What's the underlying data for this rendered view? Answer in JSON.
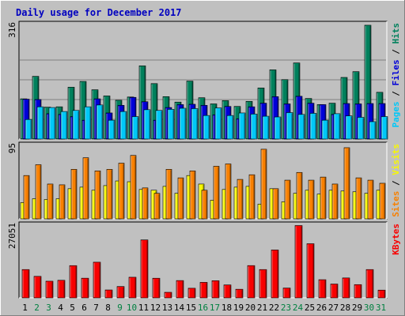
{
  "chart_data": {
    "type": "bar",
    "title": "Daily usage for December 2017",
    "categories": [
      "1",
      "2",
      "3",
      "4",
      "5",
      "6",
      "7",
      "8",
      "9",
      "10",
      "11",
      "12",
      "13",
      "14",
      "15",
      "16",
      "17",
      "18",
      "19",
      "20",
      "21",
      "22",
      "23",
      "24",
      "25",
      "26",
      "27",
      "28",
      "29",
      "30",
      "31"
    ],
    "weekend_days": [
      "2",
      "3",
      "9",
      "10",
      "16",
      "17",
      "23",
      "24",
      "30",
      "31"
    ],
    "colors": {
      "hits": "#00805c",
      "files": "#0000d8",
      "pages": "#00c8f8",
      "visits": "#f8f800",
      "sites": "#f88000",
      "kbytes": "#f80000",
      "title": "#0000c0",
      "weekday_label": "#000000",
      "weekend_label": "#008040"
    },
    "panels": [
      {
        "id": "top",
        "max_label": "316",
        "ylim": [
          0,
          316
        ],
        "legend_parts": [
          {
            "text": "Pages",
            "color": "#00c8f8"
          },
          {
            "text": " / ",
            "color": "#000000"
          },
          {
            "text": "Files",
            "color": "#0000d8"
          },
          {
            "text": " / ",
            "color": "#000000"
          },
          {
            "text": "Hits",
            "color": "#00805c"
          }
        ],
        "series": [
          {
            "name": "Hits",
            "values": [
              111,
              173,
              88,
              89,
              143,
              159,
              136,
              119,
              107,
              116,
              202,
              153,
              117,
              102,
              160,
              114,
              97,
              106,
              90,
              104,
              141,
              191,
              164,
              210,
              112,
              95,
              99,
              170,
              186,
              314,
              129
            ]
          },
          {
            "name": "Files",
            "values": [
              110,
              109,
              70,
              68,
              62,
              52,
              111,
              72,
              93,
              115,
              103,
              52,
              87,
              95,
              96,
              93,
              67,
              90,
              56,
              89,
              99,
              117,
              97,
              118,
              99,
              95,
              68,
              98,
              97,
              98,
              98
            ]
          },
          {
            "name": "Pages",
            "values": [
              54,
              89,
              87,
              76,
              79,
              89,
              94,
              52,
              76,
              62,
              81,
              79,
              82,
              85,
              84,
              65,
              86,
              65,
              72,
              69,
              63,
              61,
              73,
              68,
              71,
              52,
              70,
              64,
              60,
              48,
              62
            ]
          }
        ]
      },
      {
        "id": "middle",
        "max_label": "95",
        "ylim": [
          0,
          95
        ],
        "legend_parts": [
          {
            "text": "Sites",
            "color": "#f88000"
          },
          {
            "text": " / ",
            "color": "#000000"
          },
          {
            "text": "Visits",
            "color": "#f8f800"
          }
        ],
        "series": [
          {
            "name": "Sites",
            "values": [
              56,
              70,
              45,
              44,
              64,
              79,
              62,
              64,
              72,
              82,
              40,
              33,
              64,
              53,
              62,
              37,
              68,
              71,
              51,
              57,
              90,
              39,
              50,
              60,
              50,
              54,
              45,
              92,
              53,
              50,
              46
            ]
          },
          {
            "name": "Visits",
            "values": [
              21,
              26,
              25,
              26,
              39,
              41,
              37,
              43,
              49,
              48,
              38,
              37,
              42,
              33,
              56,
              45,
              24,
              38,
              41,
              42,
              19,
              39,
              22,
              33,
              37,
              32,
              37,
              36,
              35,
              33,
              37
            ]
          }
        ]
      },
      {
        "id": "bottom",
        "max_label": "27051",
        "ylim": [
          0,
          27051
        ],
        "legend_parts": [
          {
            "text": "KBytes",
            "color": "#f80000"
          }
        ],
        "series": [
          {
            "name": "KBytes",
            "values": [
              10526,
              7998,
              6192,
              6532,
              11988,
              7309,
              13264,
              2934,
              4210,
              7665,
              21561,
              7291,
              2058,
              6433,
              3567,
              5762,
              6374,
              4808,
              3188,
              12001,
              10526,
              17808,
              3645,
              26900,
              20142,
              6749,
              5137,
              7402,
              4919,
              10526,
              2876
            ]
          }
        ]
      }
    ]
  }
}
